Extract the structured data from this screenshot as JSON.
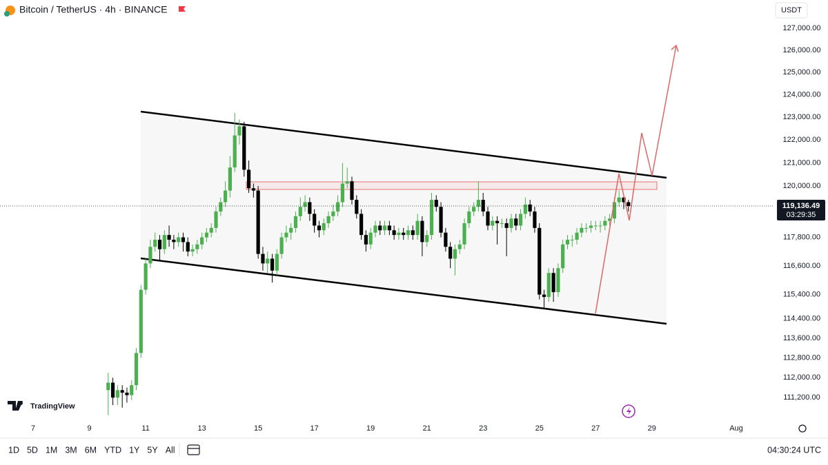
{
  "header": {
    "title": "Bitcoin / TetherUS · 4h · BINANCE",
    "currency": "USDT"
  },
  "brand": "TradingView",
  "toolbar": {
    "ranges": [
      "1D",
      "5D",
      "1M",
      "3M",
      "6M",
      "YTD",
      "1Y",
      "5Y",
      "All"
    ],
    "clock": "04:30:24 UTC"
  },
  "chart_data": {
    "type": "candlestick",
    "log_scale": true,
    "up_color": "#4caf50",
    "down_color": "#000000",
    "xlim": [
      5.82,
      33.3
    ],
    "xticks": [
      7,
      9,
      11,
      13,
      15,
      17,
      19,
      21,
      23,
      25,
      27,
      29,
      {
        "value": 32,
        "label": "Aug"
      }
    ],
    "ylim": [
      110300,
      128300
    ],
    "yticks": [
      {
        "value": 127000,
        "label": "127,000.00"
      },
      {
        "value": 126000,
        "label": "126,000.00"
      },
      {
        "value": 125000,
        "label": "125,000.00"
      },
      {
        "value": 124000,
        "label": "124,000.00"
      },
      {
        "value": 123000,
        "label": "123,000.00"
      },
      {
        "value": 122000,
        "label": "122,000.00"
      },
      {
        "value": 121000,
        "label": "121,000.00"
      },
      {
        "value": 120000,
        "label": "120,000.00"
      },
      {
        "value": 117800,
        "label": "117,800.00"
      },
      {
        "value": 116600,
        "label": "116,600.00"
      },
      {
        "value": 115400,
        "label": "115,400.00"
      },
      {
        "value": 114400,
        "label": "114,400.00"
      },
      {
        "value": 113600,
        "label": "113,600.00"
      },
      {
        "value": 112800,
        "label": "112,800.00"
      },
      {
        "value": 112000,
        "label": "112,000.00"
      },
      {
        "value": 111200,
        "label": "111,200.00"
      }
    ],
    "last_price": {
      "value": 119136.49,
      "label": "119,136.49"
    },
    "countdown": "03:29:35",
    "x": [
      9.667,
      9.833,
      10,
      10.167,
      10.333,
      10.5,
      10.667,
      10.833,
      11,
      11.167,
      11.333,
      11.5,
      11.667,
      11.833,
      12,
      12.167,
      12.333,
      12.5,
      12.667,
      12.833,
      13,
      13.167,
      13.333,
      13.5,
      13.667,
      13.833,
      14,
      14.167,
      14.333,
      14.5,
      14.667,
      14.833,
      15,
      15.167,
      15.333,
      15.5,
      15.667,
      15.833,
      16,
      16.167,
      16.333,
      16.5,
      16.667,
      16.833,
      17,
      17.167,
      17.333,
      17.5,
      17.667,
      17.833,
      18,
      18.167,
      18.333,
      18.5,
      18.667,
      18.833,
      19,
      19.167,
      19.333,
      19.5,
      19.667,
      19.833,
      20,
      20.167,
      20.333,
      20.5,
      20.667,
      20.833,
      21,
      21.167,
      21.333,
      21.5,
      21.667,
      21.833,
      22,
      22.167,
      22.333,
      22.5,
      22.667,
      22.833,
      23,
      23.167,
      23.333,
      23.5,
      23.667,
      23.833,
      24,
      24.167,
      24.333,
      24.5,
      24.667,
      24.833,
      25,
      25.167,
      25.333,
      25.5,
      25.667,
      25.833,
      26,
      26.167,
      26.333,
      26.5,
      26.667,
      26.833,
      27,
      27.167,
      27.333,
      27.5,
      27.667,
      27.833,
      28,
      28.167
    ],
    "ohlc": [
      [
        111500,
        112200,
        110500,
        111800
      ],
      [
        111800,
        112000,
        110900,
        111200
      ],
      [
        111200,
        111700,
        110900,
        111500
      ],
      [
        111500,
        111700,
        110800,
        111400
      ],
      [
        111400,
        111600,
        111000,
        111300
      ],
      [
        111300,
        111900,
        111100,
        111700
      ],
      [
        111700,
        113200,
        111500,
        113000
      ],
      [
        113000,
        115800,
        112800,
        115600
      ],
      [
        115600,
        116900,
        115400,
        116700
      ],
      [
        116700,
        117700,
        116500,
        117400
      ],
      [
        117400,
        118000,
        117200,
        117700
      ],
      [
        117700,
        117900,
        116800,
        117300
      ],
      [
        117300,
        118100,
        117100,
        117900
      ],
      [
        117900,
        118300,
        117400,
        117700
      ],
      [
        117700,
        117900,
        117300,
        117600
      ],
      [
        117600,
        118000,
        117400,
        117800
      ],
      [
        117800,
        118000,
        117200,
        117600
      ],
      [
        117600,
        117800,
        117000,
        117200
      ],
      [
        117200,
        117500,
        117000,
        117300
      ],
      [
        117300,
        117700,
        117100,
        117500
      ],
      [
        117500,
        118000,
        117300,
        117800
      ],
      [
        117800,
        118200,
        117600,
        118000
      ],
      [
        118000,
        118400,
        117800,
        118200
      ],
      [
        118200,
        119100,
        118000,
        118900
      ],
      [
        118900,
        119500,
        118700,
        119300
      ],
      [
        119300,
        120200,
        119100,
        119800
      ],
      [
        119800,
        121300,
        119500,
        120800
      ],
      [
        120800,
        123200,
        120600,
        122200
      ],
      [
        122200,
        122900,
        121800,
        122600
      ],
      [
        122600,
        122800,
        120400,
        120700
      ],
      [
        120700,
        121100,
        119700,
        119900
      ],
      [
        119900,
        120100,
        119500,
        119800
      ],
      [
        119800,
        120000,
        116900,
        117100
      ],
      [
        117100,
        117400,
        116400,
        116700
      ],
      [
        116700,
        117200,
        116300,
        116900
      ],
      [
        116900,
        117100,
        115900,
        116400
      ],
      [
        116400,
        117300,
        116200,
        117100
      ],
      [
        117100,
        118000,
        116900,
        117800
      ],
      [
        117800,
        118300,
        117600,
        118000
      ],
      [
        118000,
        118400,
        117700,
        118200
      ],
      [
        118200,
        118900,
        118000,
        118700
      ],
      [
        118700,
        119500,
        118500,
        119100
      ],
      [
        119100,
        119600,
        118900,
        119300
      ],
      [
        119300,
        119500,
        118500,
        118800
      ],
      [
        118800,
        119000,
        118000,
        118300
      ],
      [
        118300,
        118500,
        117800,
        118100
      ],
      [
        118100,
        118600,
        117900,
        118400
      ],
      [
        118400,
        118900,
        118200,
        118700
      ],
      [
        118700,
        119200,
        118500,
        118900
      ],
      [
        118900,
        119600,
        118700,
        119300
      ],
      [
        119300,
        121000,
        119100,
        120100
      ],
      [
        120100,
        120800,
        119900,
        120200
      ],
      [
        120200,
        120400,
        119200,
        119400
      ],
      [
        119400,
        119600,
        118600,
        118800
      ],
      [
        118800,
        119000,
        117700,
        117900
      ],
      [
        117900,
        118100,
        117200,
        117500
      ],
      [
        117500,
        118200,
        117300,
        118000
      ],
      [
        118000,
        118500,
        117800,
        118300
      ],
      [
        118300,
        118500,
        117900,
        118100
      ],
      [
        118100,
        118500,
        117900,
        118300
      ],
      [
        118300,
        118500,
        117900,
        118100
      ],
      [
        118100,
        118300,
        117700,
        117900
      ],
      [
        117900,
        118200,
        117700,
        118000
      ],
      [
        118000,
        118200,
        117700,
        117900
      ],
      [
        117900,
        118300,
        117700,
        118100
      ],
      [
        118100,
        118300,
        117700,
        117900
      ],
      [
        117900,
        118800,
        117700,
        118500
      ],
      [
        118500,
        118700,
        117000,
        117600
      ],
      [
        117600,
        118100,
        117400,
        117900
      ],
      [
        117900,
        119700,
        117700,
        119400
      ],
      [
        119400,
        119600,
        118900,
        119100
      ],
      [
        119100,
        119300,
        117800,
        118000
      ],
      [
        118000,
        118200,
        117200,
        117400
      ],
      [
        117400,
        117600,
        116500,
        116900
      ],
      [
        116900,
        117500,
        116200,
        117300
      ],
      [
        117300,
        117700,
        117100,
        117500
      ],
      [
        117500,
        118600,
        117300,
        118400
      ],
      [
        118400,
        119100,
        118200,
        118900
      ],
      [
        118900,
        119300,
        118700,
        119100
      ],
      [
        119100,
        120200,
        118900,
        119400
      ],
      [
        119400,
        119700,
        118700,
        118900
      ],
      [
        118900,
        119100,
        118100,
        118300
      ],
      [
        118300,
        118700,
        118100,
        118500
      ],
      [
        118500,
        118700,
        117500,
        118400
      ],
      [
        118400,
        118600,
        118200,
        118400
      ],
      [
        118400,
        118600,
        117000,
        118200
      ],
      [
        118200,
        118800,
        118000,
        118600
      ],
      [
        118600,
        118800,
        118100,
        118300
      ],
      [
        118300,
        119000,
        118100,
        118800
      ],
      [
        118800,
        119500,
        118600,
        119200
      ],
      [
        119200,
        119400,
        118700,
        118900
      ],
      [
        118900,
        119100,
        118000,
        118200
      ],
      [
        118200,
        118400,
        115200,
        115400
      ],
      [
        115400,
        115600,
        114800,
        115300
      ],
      [
        115300,
        116500,
        115100,
        116300
      ],
      [
        116300,
        116500,
        115100,
        115500
      ],
      [
        115500,
        116700,
        115300,
        116500
      ],
      [
        116500,
        117700,
        116300,
        117500
      ],
      [
        117500,
        117900,
        117300,
        117700
      ],
      [
        117700,
        117900,
        117400,
        117700
      ],
      [
        117700,
        118200,
        117500,
        118000
      ],
      [
        118000,
        118400,
        117800,
        118200
      ],
      [
        118200,
        118400,
        118000,
        118200
      ],
      [
        118200,
        118500,
        118000,
        118300
      ],
      [
        118300,
        118500,
        118100,
        118300
      ],
      [
        118300,
        118500,
        118000,
        118300
      ],
      [
        118300,
        118700,
        118100,
        118500
      ],
      [
        118500,
        118800,
        118300,
        118600
      ],
      [
        118600,
        119500,
        118400,
        119300
      ],
      [
        119300,
        119800,
        119100,
        119500
      ],
      [
        119500,
        119600,
        119000,
        119300
      ],
      [
        119300,
        119400,
        118900,
        119136.49
      ]
    ]
  }
}
